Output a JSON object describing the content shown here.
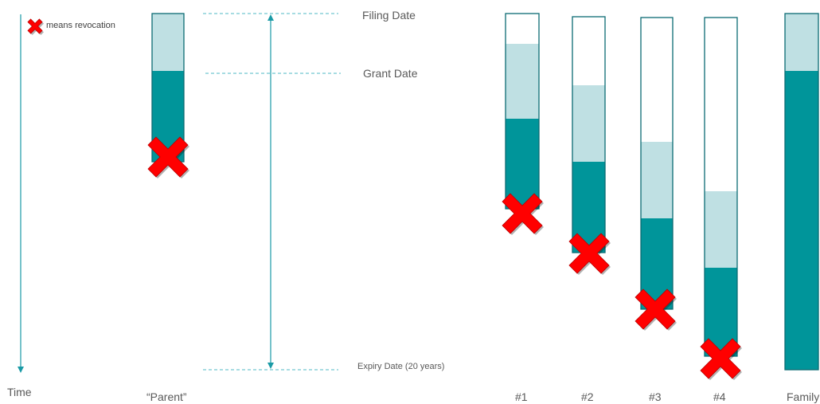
{
  "legend": {
    "text": "means revocation"
  },
  "axis": {
    "time_label": "Time"
  },
  "dates": {
    "filing": "Filing Date",
    "grant": "Grant Date",
    "expiry": "Expiry Date (20 years)"
  },
  "columns": [
    {
      "label": "“Parent”"
    },
    {
      "label": "#1"
    },
    {
      "label": "#2"
    },
    {
      "label": "#3"
    },
    {
      "label": "#4"
    },
    {
      "label": "Family"
    }
  ],
  "colors": {
    "pending": "#bfe0e3",
    "granted": "#00959a",
    "outline": "#0b6b73",
    "revocation": "#ff0000",
    "guide": "#4fb8c4",
    "axis": "#1a9aa6"
  }
}
